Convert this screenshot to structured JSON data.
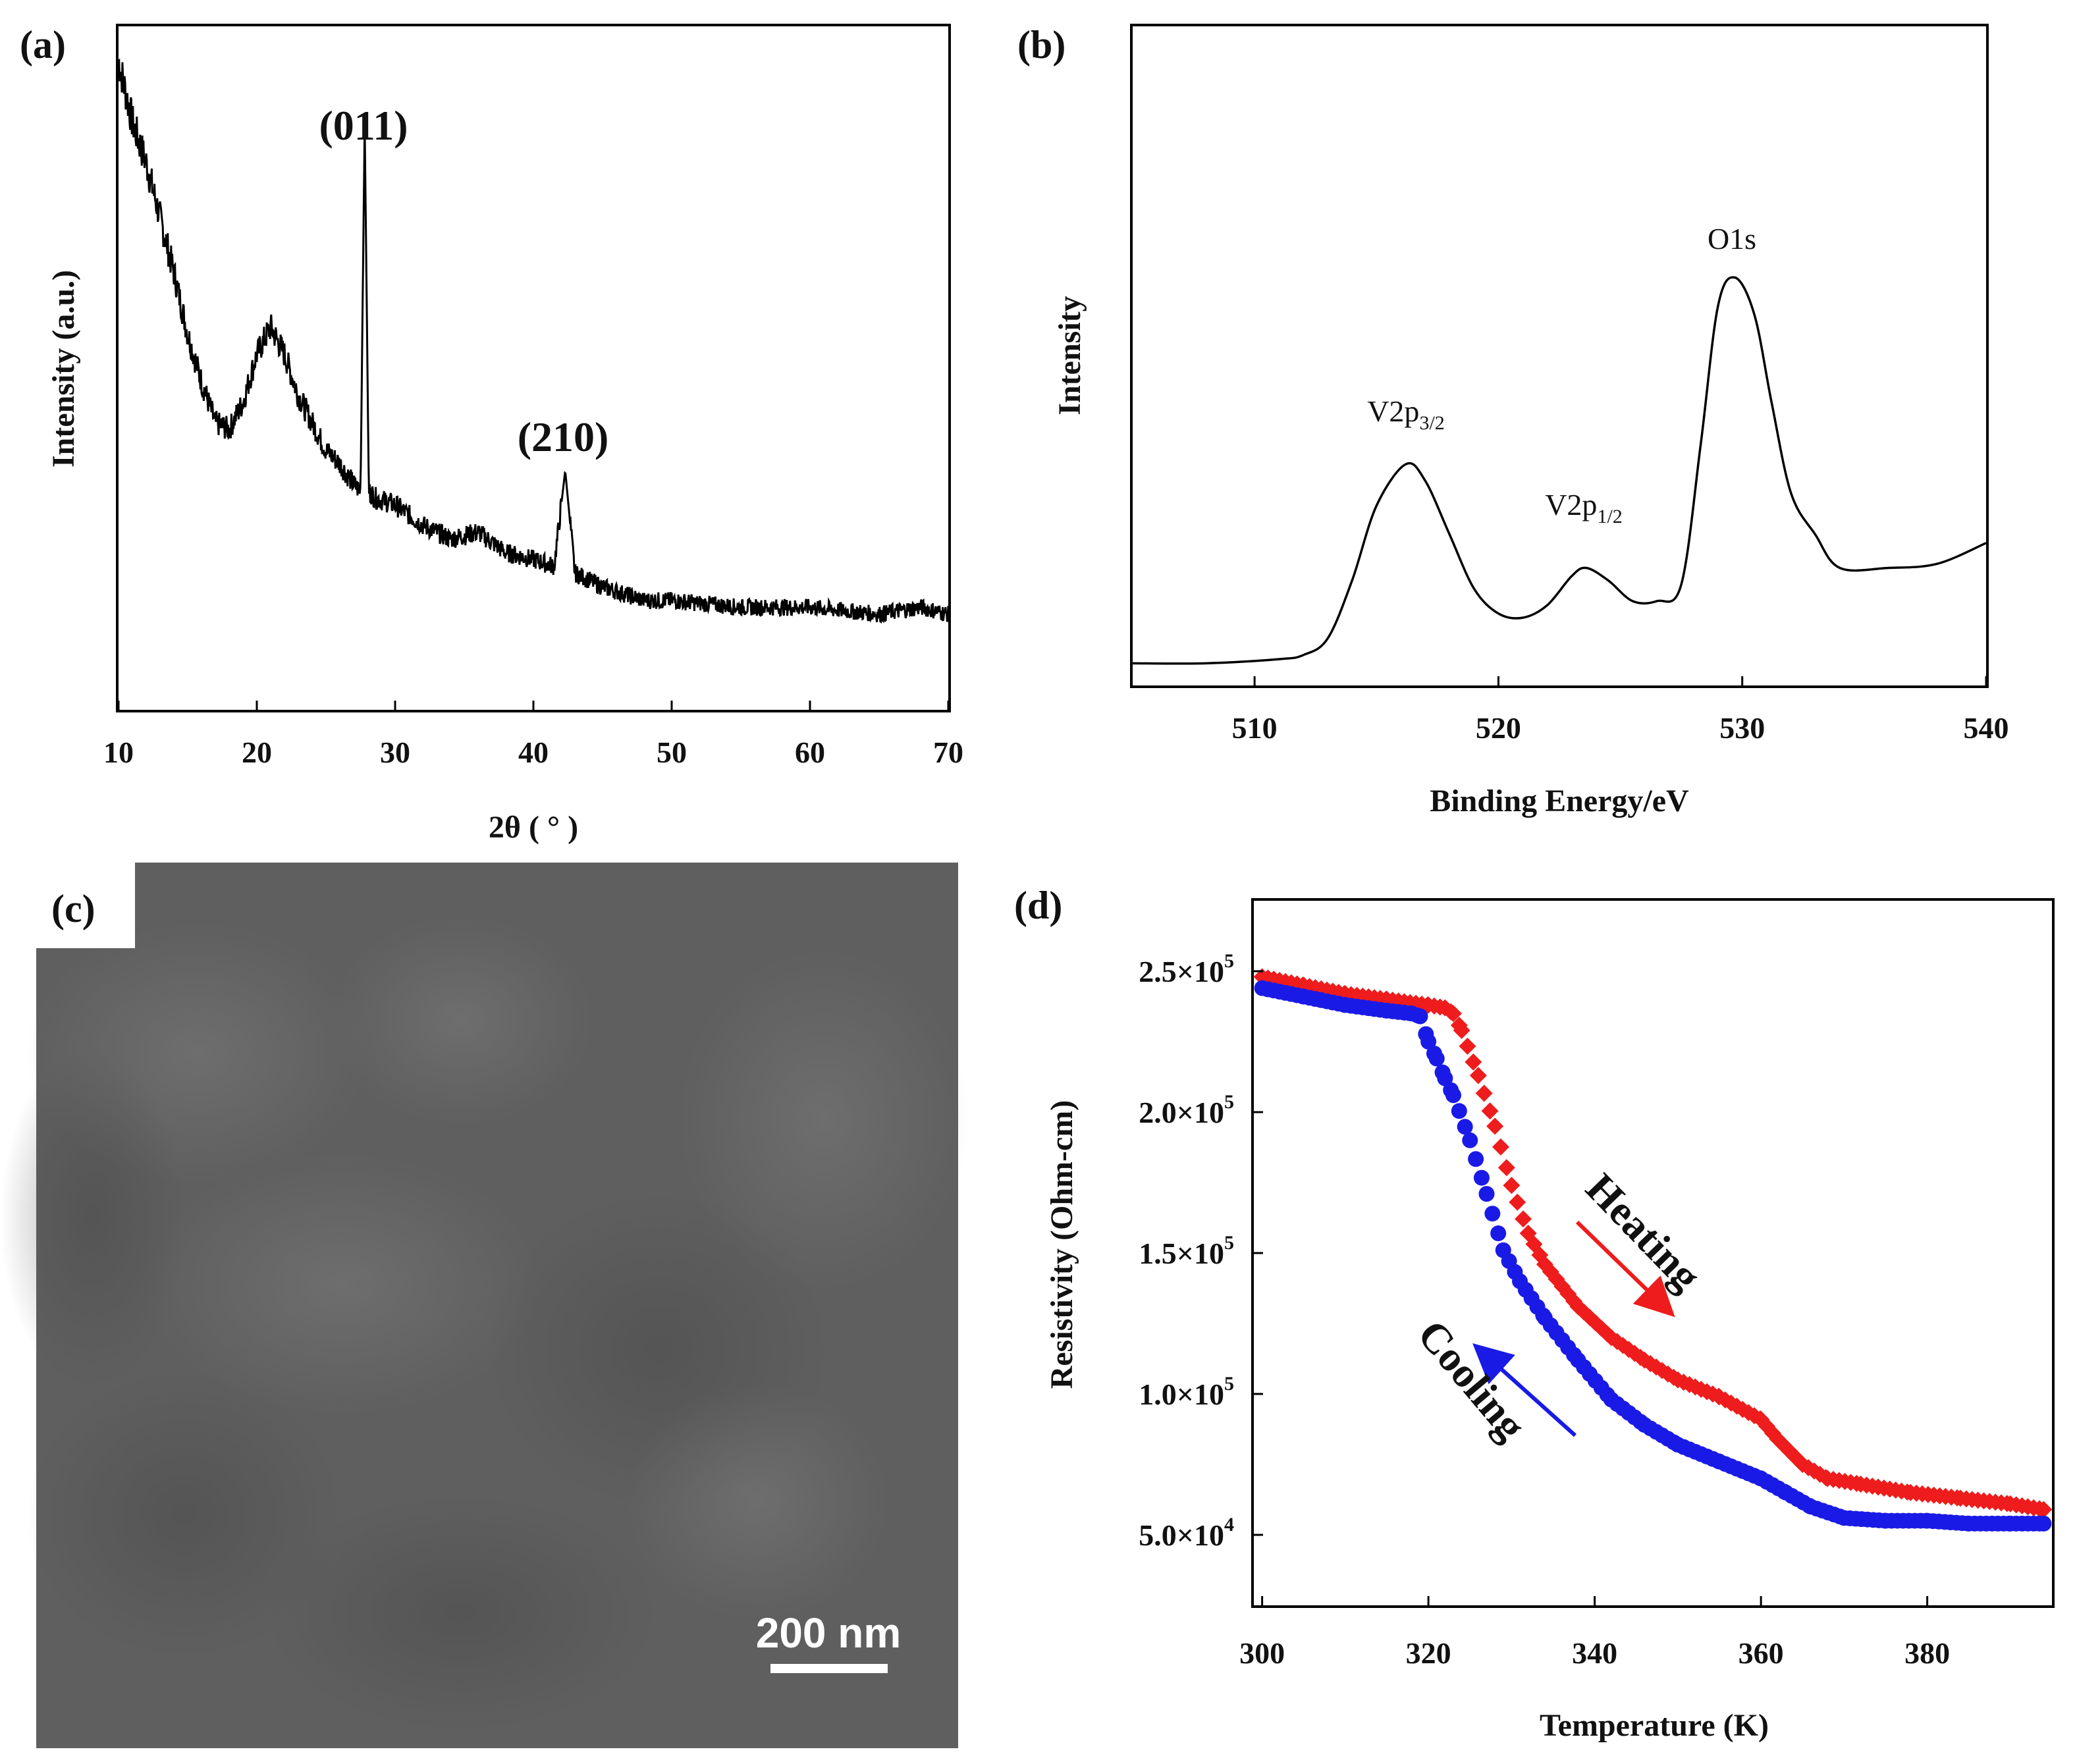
{
  "colors": {
    "heating": "#ee1c1c",
    "cooling": "#1a1ae6",
    "sem_background": "#5f5f5f",
    "line": "#000000"
  },
  "panels": {
    "a": {
      "label": "(a)",
      "xlabel": "2θ ( ° )",
      "ylabel": "Intensity (a.u.)",
      "xticks": [
        "10",
        "20",
        "30",
        "40",
        "50",
        "60",
        "70"
      ],
      "peaks": [
        {
          "label": "(011)",
          "x": 27.8
        },
        {
          "label": "(210)",
          "x": 42.3
        }
      ]
    },
    "b": {
      "label": "(b)",
      "xlabel": "Binding Energy/eV",
      "ylabel": "Intensity",
      "xticks": [
        "510",
        "520",
        "530",
        "540"
      ],
      "peaks": [
        {
          "main": "V2p",
          "sub": "3/2",
          "x": 516.2
        },
        {
          "main": "V2p",
          "sub": "1/2",
          "x": 523.6
        },
        {
          "main": "O1s",
          "sub": "",
          "x": 529.7
        }
      ]
    },
    "c": {
      "label": "(c)",
      "scale_bar": "200 nm"
    },
    "d": {
      "label": "(d)",
      "xlabel": "Temperature (K)",
      "ylabel": "Resistivity (Ohm-cm)",
      "xticks": [
        "300",
        "320",
        "340",
        "360",
        "380"
      ],
      "yticks": [
        {
          "mantissa": "2.5×10",
          "exp": "5"
        },
        {
          "mantissa": "2.0×10",
          "exp": "5"
        },
        {
          "mantissa": "1.5×10",
          "exp": "5"
        },
        {
          "mantissa": "1.0×10",
          "exp": "5"
        },
        {
          "mantissa": "5.0×10",
          "exp": "4"
        }
      ],
      "heating_label": "Heating",
      "cooling_label": "Cooling"
    }
  },
  "chart_data": [
    {
      "type": "line",
      "panel": "a",
      "title": "",
      "xlabel": "2θ ( ° )",
      "ylabel": "Intensity (a.u.)",
      "xlim": [
        10,
        70
      ],
      "ylim": [
        0,
        100
      ],
      "series": [
        {
          "name": "XRD pattern",
          "x": [
            10,
            11,
            12,
            13,
            14,
            15,
            16,
            17,
            18,
            19,
            20,
            21,
            22,
            23,
            24,
            25,
            26,
            27,
            27.5,
            27.8,
            28.1,
            28.6,
            30,
            32,
            34,
            36,
            38,
            40,
            41.5,
            42.3,
            43,
            45,
            48,
            50,
            55,
            60,
            65,
            68,
            70
          ],
          "y": [
            95,
            86,
            80,
            72,
            64,
            55,
            48,
            42,
            41,
            45,
            52,
            56,
            52,
            46,
            42,
            38,
            36,
            33,
            32,
            86,
            32,
            31,
            30,
            27,
            25,
            26,
            23,
            22,
            21,
            35,
            20,
            18,
            16,
            16,
            15,
            15,
            14,
            15,
            14
          ]
        }
      ],
      "annotations": [
        "(011)",
        "(210)"
      ]
    },
    {
      "type": "line",
      "panel": "b",
      "title": "",
      "xlabel": "Binding Energy/eV",
      "ylabel": "Intensity",
      "xlim": [
        505,
        540
      ],
      "ylim": [
        0,
        100
      ],
      "series": [
        {
          "name": "XPS spectrum",
          "x": [
            505,
            508,
            511,
            512,
            513,
            514,
            515,
            516.2,
            517,
            518,
            519,
            520,
            521,
            522,
            523,
            523.6,
            524.5,
            525.5,
            526.5,
            527.5,
            528.3,
            529,
            529.7,
            530.5,
            531.2,
            532,
            533,
            534,
            536,
            538,
            540
          ],
          "y": [
            2,
            2,
            3,
            4,
            8,
            22,
            40,
            50,
            46,
            33,
            20,
            14,
            13,
            16,
            23,
            25,
            22,
            17,
            17,
            21,
            55,
            88,
            95,
            86,
            65,
            43,
            33,
            25,
            25,
            26,
            31
          ]
        }
      ],
      "annotations": [
        "V2p3/2",
        "V2p1/2",
        "O1s"
      ]
    },
    {
      "type": "scatter",
      "panel": "d",
      "title": "",
      "xlabel": "Temperature (K)",
      "ylabel": "Resistivity (Ohm-cm)",
      "xlim": [
        299,
        395
      ],
      "ylim": [
        25000,
        275000
      ],
      "series": [
        {
          "name": "Heating",
          "marker": "diamond",
          "x": [
            300,
            305,
            310,
            315,
            320,
            322,
            323,
            324,
            326,
            328,
            330,
            332,
            334,
            338,
            342,
            346,
            350,
            355,
            360,
            362,
            365,
            368,
            372,
            378,
            384,
            390,
            394
          ],
          "y": [
            248000,
            245000,
            242000,
            240000,
            238000,
            237000,
            235000,
            229000,
            213000,
            195000,
            174000,
            157000,
            146000,
            131000,
            120000,
            112000,
            105000,
            99000,
            91000,
            84000,
            75000,
            70000,
            68000,
            65000,
            63000,
            61000,
            59000
          ]
        },
        {
          "name": "Cooling",
          "marker": "circle",
          "x": [
            300,
            305,
            310,
            315,
            318,
            319,
            320,
            321,
            322,
            323,
            325,
            327,
            329,
            331,
            334,
            338,
            342,
            346,
            350,
            355,
            360,
            363,
            366,
            370,
            375,
            380,
            385,
            390,
            394
          ],
          "y": [
            244000,
            241000,
            238000,
            236000,
            235000,
            234000,
            225000,
            219000,
            212000,
            206000,
            190000,
            171000,
            151000,
            140000,
            127000,
            112000,
            98000,
            89000,
            82000,
            76000,
            70000,
            65000,
            60000,
            56000,
            55000,
            55000,
            54000,
            54000,
            54000
          ]
        }
      ]
    }
  ]
}
